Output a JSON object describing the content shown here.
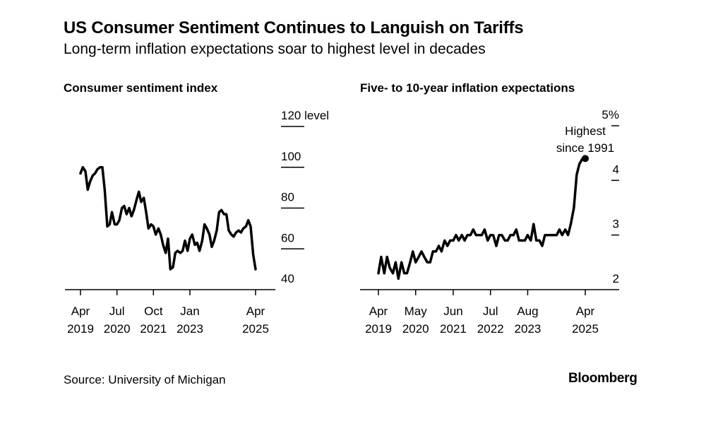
{
  "header": {
    "title": "US Consumer Sentiment Continues to Languish on Tariffs",
    "subtitle": "Long-term inflation expectations soar to highest level in decades"
  },
  "footer": {
    "source": "Source: University of Michigan",
    "brand": "Bloomberg"
  },
  "colors": {
    "line": "#000000",
    "background": "#ffffff"
  },
  "chart_data": [
    {
      "type": "line",
      "title": "Consumer sentiment index",
      "ylabel": "level",
      "ylim": [
        40,
        120
      ],
      "yticks": [
        {
          "value": 120,
          "label": "120 level"
        },
        {
          "value": 100,
          "label": "100"
        },
        {
          "value": 80,
          "label": "80"
        },
        {
          "value": 60,
          "label": "60"
        },
        {
          "value": 40,
          "label": "40"
        }
      ],
      "xlim": [
        2019.25,
        2025.25
      ],
      "xticks": [
        {
          "value": 2019.25,
          "label": [
            "Apr",
            "2019"
          ]
        },
        {
          "value": 2020.5,
          "label": [
            "Jul",
            "2020"
          ]
        },
        {
          "value": 2021.75,
          "label": [
            "Oct",
            "2021"
          ]
        },
        {
          "value": 2023.0,
          "label": [
            "Jan",
            "2023"
          ]
        },
        {
          "value": 2025.25,
          "label": [
            "Apr",
            "2025"
          ]
        }
      ],
      "series": [
        {
          "name": "Consumer sentiment index",
          "x": [
            2019.25,
            2019.33,
            2019.42,
            2019.5,
            2019.58,
            2019.67,
            2019.75,
            2019.83,
            2019.92,
            2020.0,
            2020.08,
            2020.17,
            2020.25,
            2020.33,
            2020.42,
            2020.5,
            2020.58,
            2020.67,
            2020.75,
            2020.83,
            2020.92,
            2021.0,
            2021.08,
            2021.17,
            2021.25,
            2021.33,
            2021.42,
            2021.5,
            2021.58,
            2021.67,
            2021.75,
            2021.83,
            2021.92,
            2022.0,
            2022.08,
            2022.17,
            2022.25,
            2022.33,
            2022.42,
            2022.5,
            2022.58,
            2022.67,
            2022.75,
            2022.83,
            2022.92,
            2023.0,
            2023.08,
            2023.17,
            2023.25,
            2023.33,
            2023.42,
            2023.5,
            2023.58,
            2023.67,
            2023.75,
            2023.83,
            2023.92,
            2024.0,
            2024.08,
            2024.17,
            2024.25,
            2024.33,
            2024.42,
            2024.5,
            2024.58,
            2024.67,
            2024.75,
            2024.83,
            2024.92,
            2025.0,
            2025.08,
            2025.17,
            2025.25
          ],
          "values": [
            97,
            100,
            98,
            89,
            93,
            96,
            97,
            99,
            100,
            100,
            89,
            71,
            72,
            78,
            72,
            72,
            74,
            80,
            81,
            77,
            80,
            76,
            79,
            84,
            88,
            83,
            85,
            78,
            70,
            72,
            71,
            67,
            70,
            67,
            62,
            58,
            65,
            50,
            51,
            58,
            59,
            58,
            59,
            64,
            59,
            65,
            67,
            62,
            63,
            59,
            64,
            72,
            70,
            67,
            61,
            64,
            69,
            78,
            79,
            77,
            77,
            69,
            67,
            66,
            68,
            69,
            68,
            70,
            71,
            74,
            71,
            57,
            50
          ]
        }
      ]
    },
    {
      "type": "line",
      "title": "Five- to 10-year inflation expectations",
      "ylabel": "%",
      "ylim": [
        2,
        5
      ],
      "yticks": [
        {
          "value": 5,
          "label": "5%"
        },
        {
          "value": 4,
          "label": "4"
        },
        {
          "value": 3,
          "label": "3"
        },
        {
          "value": 2,
          "label": "2"
        }
      ],
      "xlim": [
        2019.25,
        2025.25
      ],
      "xticks": [
        {
          "value": 2019.25,
          "label": [
            "Apr",
            "2019"
          ]
        },
        {
          "value": 2020.33,
          "label": [
            "May",
            "2020"
          ]
        },
        {
          "value": 2021.42,
          "label": [
            "Jun",
            "2021"
          ]
        },
        {
          "value": 2022.5,
          "label": [
            "Jul",
            "2022"
          ]
        },
        {
          "value": 2023.58,
          "label": [
            "Aug",
            "2023"
          ]
        },
        {
          "value": 2025.25,
          "label": [
            "Apr",
            "2025"
          ]
        }
      ],
      "annotation": {
        "x": 2025.25,
        "y": 4.4,
        "text": [
          "Highest",
          "since 1991"
        ]
      },
      "series": [
        {
          "name": "Five- to 10-year inflation expectations",
          "x": [
            2019.25,
            2019.33,
            2019.42,
            2019.5,
            2019.58,
            2019.67,
            2019.75,
            2019.83,
            2019.92,
            2020.0,
            2020.08,
            2020.17,
            2020.25,
            2020.33,
            2020.42,
            2020.5,
            2020.58,
            2020.67,
            2020.75,
            2020.83,
            2020.92,
            2021.0,
            2021.08,
            2021.17,
            2021.25,
            2021.33,
            2021.42,
            2021.5,
            2021.58,
            2021.67,
            2021.75,
            2021.83,
            2021.92,
            2022.0,
            2022.08,
            2022.17,
            2022.25,
            2022.33,
            2022.42,
            2022.5,
            2022.58,
            2022.67,
            2022.75,
            2022.83,
            2022.92,
            2023.0,
            2023.08,
            2023.17,
            2023.25,
            2023.33,
            2023.42,
            2023.5,
            2023.58,
            2023.67,
            2023.75,
            2023.83,
            2023.92,
            2024.0,
            2024.08,
            2024.17,
            2024.25,
            2024.33,
            2024.42,
            2024.5,
            2024.58,
            2024.67,
            2024.75,
            2024.83,
            2024.92,
            2025.0,
            2025.08,
            2025.17,
            2025.25
          ],
          "values": [
            2.3,
            2.6,
            2.3,
            2.6,
            2.4,
            2.3,
            2.5,
            2.2,
            2.5,
            2.3,
            2.3,
            2.5,
            2.7,
            2.5,
            2.6,
            2.7,
            2.6,
            2.5,
            2.5,
            2.7,
            2.7,
            2.8,
            2.7,
            2.9,
            2.8,
            2.9,
            2.9,
            3.0,
            2.9,
            3.0,
            2.9,
            3.0,
            3.0,
            3.1,
            3.0,
            3.0,
            3.0,
            3.1,
            2.9,
            3.0,
            3.0,
            2.8,
            3.0,
            3.0,
            2.9,
            2.9,
            3.0,
            3.0,
            3.1,
            2.9,
            2.9,
            2.9,
            3.0,
            2.9,
            3.2,
            2.9,
            2.9,
            2.8,
            3.0,
            3.0,
            3.0,
            3.0,
            3.0,
            3.1,
            3.0,
            3.1,
            3.0,
            3.2,
            3.5,
            4.1,
            4.3,
            4.4,
            4.4
          ]
        }
      ]
    }
  ]
}
